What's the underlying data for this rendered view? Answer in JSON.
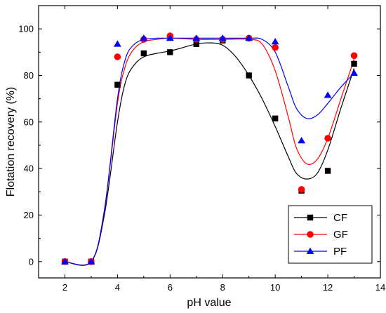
{
  "chart_data": {
    "type": "scatter",
    "title": "",
    "xlabel": "pH value",
    "ylabel": "Flotation recovery (%)",
    "xlim": [
      1,
      14
    ],
    "ylim": [
      -7,
      110
    ],
    "xticks": [
      2,
      4,
      6,
      8,
      10,
      12,
      14
    ],
    "yticks": [
      0,
      20,
      40,
      60,
      80,
      100
    ],
    "grid": false,
    "legend_position": "bottom-right",
    "series": [
      {
        "name": "CF",
        "color": "#000000",
        "marker": "square",
        "x": [
          2,
          3,
          4,
          5,
          6,
          7,
          8,
          9,
          10,
          11,
          12,
          13
        ],
        "y": [
          0,
          0,
          76,
          89.5,
          90,
          93.5,
          95,
          80,
          61.5,
          30.5,
          39,
          85
        ],
        "fit_x": [
          2,
          3,
          3.5,
          4,
          4.3,
          4.6,
          5,
          5.5,
          6,
          6.5,
          7,
          7.5,
          8,
          8.5,
          9,
          9.5,
          10,
          10.5,
          10.8,
          11.2,
          11.6,
          12,
          12.5,
          13
        ],
        "fit_y": [
          0,
          0,
          20,
          60,
          77,
          84,
          88,
          89.5,
          90.5,
          92,
          93.5,
          94,
          93,
          88,
          80,
          70,
          58,
          45,
          38,
          35.5,
          38,
          48,
          66,
          83
        ]
      },
      {
        "name": "GF",
        "color": "#ff0000",
        "marker": "circle",
        "x": [
          2,
          3,
          4,
          5,
          6,
          7,
          8,
          9,
          10,
          11,
          12,
          13
        ],
        "y": [
          0,
          0,
          88,
          95.5,
          97,
          95.5,
          95.5,
          96,
          92,
          31,
          53,
          88.5
        ],
        "fit_x": [
          2,
          3,
          3.5,
          4,
          4.3,
          4.6,
          5,
          5.5,
          6,
          7,
          8,
          9,
          9.5,
          10,
          10.5,
          10.8,
          11.2,
          11.6,
          12,
          12.5,
          13
        ],
        "fit_y": [
          0,
          0,
          22,
          68,
          84,
          91,
          94.5,
          95.5,
          96,
          95.5,
          95.5,
          95.5,
          93.5,
          82,
          62,
          49,
          42,
          44,
          53,
          70,
          87
        ]
      },
      {
        "name": "PF",
        "color": "#0000ff",
        "marker": "triangle",
        "x": [
          2,
          3,
          4,
          5,
          6,
          7,
          8,
          9,
          10,
          11,
          12,
          13
        ],
        "y": [
          0,
          0,
          93.5,
          96,
          96,
          96,
          96,
          96,
          94.5,
          52,
          71.5,
          81
        ],
        "fit_x": [
          2,
          3,
          3.5,
          4,
          4.3,
          4.6,
          5,
          5.5,
          6,
          7,
          8,
          9,
          9.5,
          10,
          10.5,
          10.8,
          11.2,
          11.6,
          12,
          12.5,
          13
        ],
        "fit_y": [
          0,
          0,
          22,
          70,
          87,
          93,
          95.5,
          96,
          96,
          96,
          96,
          96,
          95.5,
          90,
          75,
          66,
          61.5,
          63,
          68,
          75,
          81
        ]
      }
    ]
  }
}
